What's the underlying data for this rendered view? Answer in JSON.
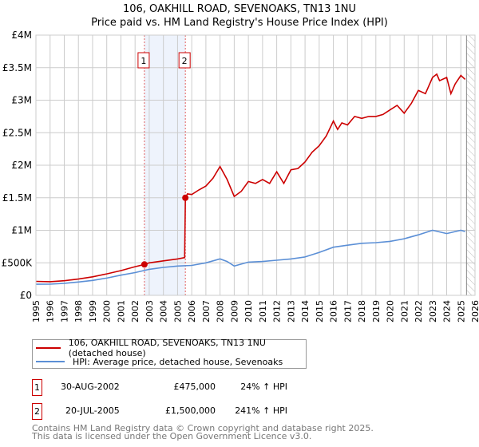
{
  "title_line1": "106, OAKHILL ROAD, SEVENOAKS, TN13 1NU",
  "title_line2": "Price paid vs. HM Land Registry's House Price Index (HPI)",
  "chart_data": {
    "type": "line",
    "xlim": [
      1995,
      2026
    ],
    "ylim": [
      0,
      4000000
    ],
    "x_ticks": [
      1995,
      1996,
      1997,
      1998,
      1999,
      2000,
      2001,
      2002,
      2003,
      2004,
      2005,
      2006,
      2007,
      2008,
      2009,
      2010,
      2011,
      2012,
      2013,
      2014,
      2015,
      2016,
      2017,
      2018,
      2019,
      2020,
      2021,
      2022,
      2023,
      2024,
      2025,
      2026
    ],
    "y_ticks": [
      {
        "v": 0,
        "label": "£0"
      },
      {
        "v": 500000,
        "label": "£500K"
      },
      {
        "v": 1000000,
        "label": "£1M"
      },
      {
        "v": 1500000,
        "label": "£1.5M"
      },
      {
        "v": 2000000,
        "label": "£2M"
      },
      {
        "v": 2500000,
        "label": "£2.5M"
      },
      {
        "v": 3000000,
        "label": "£3M"
      },
      {
        "v": 3500000,
        "label": "£3.5M"
      },
      {
        "v": 4000000,
        "label": "£4M"
      }
    ],
    "grid": true,
    "shaded_range": [
      2002.66,
      2005.55
    ],
    "hatched_from": 2025.4,
    "series": [
      {
        "name": "106, OAKHILL ROAD, SEVENOAKS, TN13 1NU (detached house)",
        "color": "#cc0000",
        "x": [
          1995,
          1996,
          1997,
          1998,
          1999,
          2000,
          2001,
          2002,
          2002.66,
          2003,
          2004,
          2005,
          2005.5,
          2005.55,
          2005.7,
          2006,
          2006.5,
          2007,
          2007.5,
          2008,
          2008.5,
          2009,
          2009.5,
          2010,
          2010.5,
          2011,
          2011.5,
          2012,
          2012.5,
          2013,
          2013.5,
          2014,
          2014.5,
          2015,
          2015.5,
          2016,
          2016.3,
          2016.6,
          2017,
          2017.5,
          2018,
          2018.5,
          2019,
          2019.5,
          2020,
          2020.5,
          2021,
          2021.5,
          2022,
          2022.5,
          2023,
          2023.3,
          2023.5,
          2024,
          2024.3,
          2024.6,
          2025,
          2025.3
        ],
        "y": [
          215000,
          210000,
          225000,
          250000,
          285000,
          330000,
          380000,
          440000,
          475000,
          500000,
          530000,
          560000,
          580000,
          1500000,
          1560000,
          1550000,
          1620000,
          1680000,
          1800000,
          1980000,
          1780000,
          1520000,
          1600000,
          1750000,
          1720000,
          1780000,
          1720000,
          1900000,
          1720000,
          1930000,
          1950000,
          2050000,
          2200000,
          2300000,
          2450000,
          2680000,
          2550000,
          2650000,
          2620000,
          2750000,
          2720000,
          2750000,
          2750000,
          2780000,
          2850000,
          2920000,
          2800000,
          2950000,
          3150000,
          3100000,
          3350000,
          3400000,
          3300000,
          3350000,
          3100000,
          3250000,
          3380000,
          3320000
        ]
      },
      {
        "name": "HPI: Average price, detached house, Sevenoaks",
        "color": "#5b8fd6",
        "x": [
          1995,
          1996,
          1997,
          1998,
          1999,
          2000,
          2001,
          2002,
          2003,
          2004,
          2005,
          2006,
          2007,
          2008,
          2008.5,
          2009,
          2010,
          2011,
          2012,
          2013,
          2014,
          2015,
          2016,
          2017,
          2018,
          2019,
          2020,
          2021,
          2022,
          2023,
          2024,
          2025,
          2025.3
        ],
        "y": [
          170000,
          172000,
          185000,
          205000,
          230000,
          265000,
          310000,
          350000,
          400000,
          430000,
          450000,
          460000,
          500000,
          560000,
          520000,
          450000,
          510000,
          520000,
          540000,
          560000,
          590000,
          660000,
          740000,
          770000,
          800000,
          810000,
          830000,
          870000,
          930000,
          1000000,
          950000,
          1000000,
          980000
        ]
      }
    ],
    "sales": [
      {
        "label": "1",
        "x": 2002.66,
        "y": 475000
      },
      {
        "label": "2",
        "x": 2005.55,
        "y": 1500000
      }
    ]
  },
  "legend": [
    "106, OAKHILL ROAD, SEVENOAKS, TN13 1NU (detached house)",
    "HPI: Average price, detached house, Sevenoaks"
  ],
  "sales_table": [
    {
      "num": "1",
      "date": "30-AUG-2002",
      "price": "£475,000",
      "hpi": "24% ↑ HPI"
    },
    {
      "num": "2",
      "date": "20-JUL-2005",
      "price": "£1,500,000",
      "hpi": "241% ↑ HPI"
    }
  ],
  "footer": [
    "Contains HM Land Registry data © Crown copyright and database right 2025.",
    "This data is licensed under the Open Government Licence v3.0."
  ]
}
